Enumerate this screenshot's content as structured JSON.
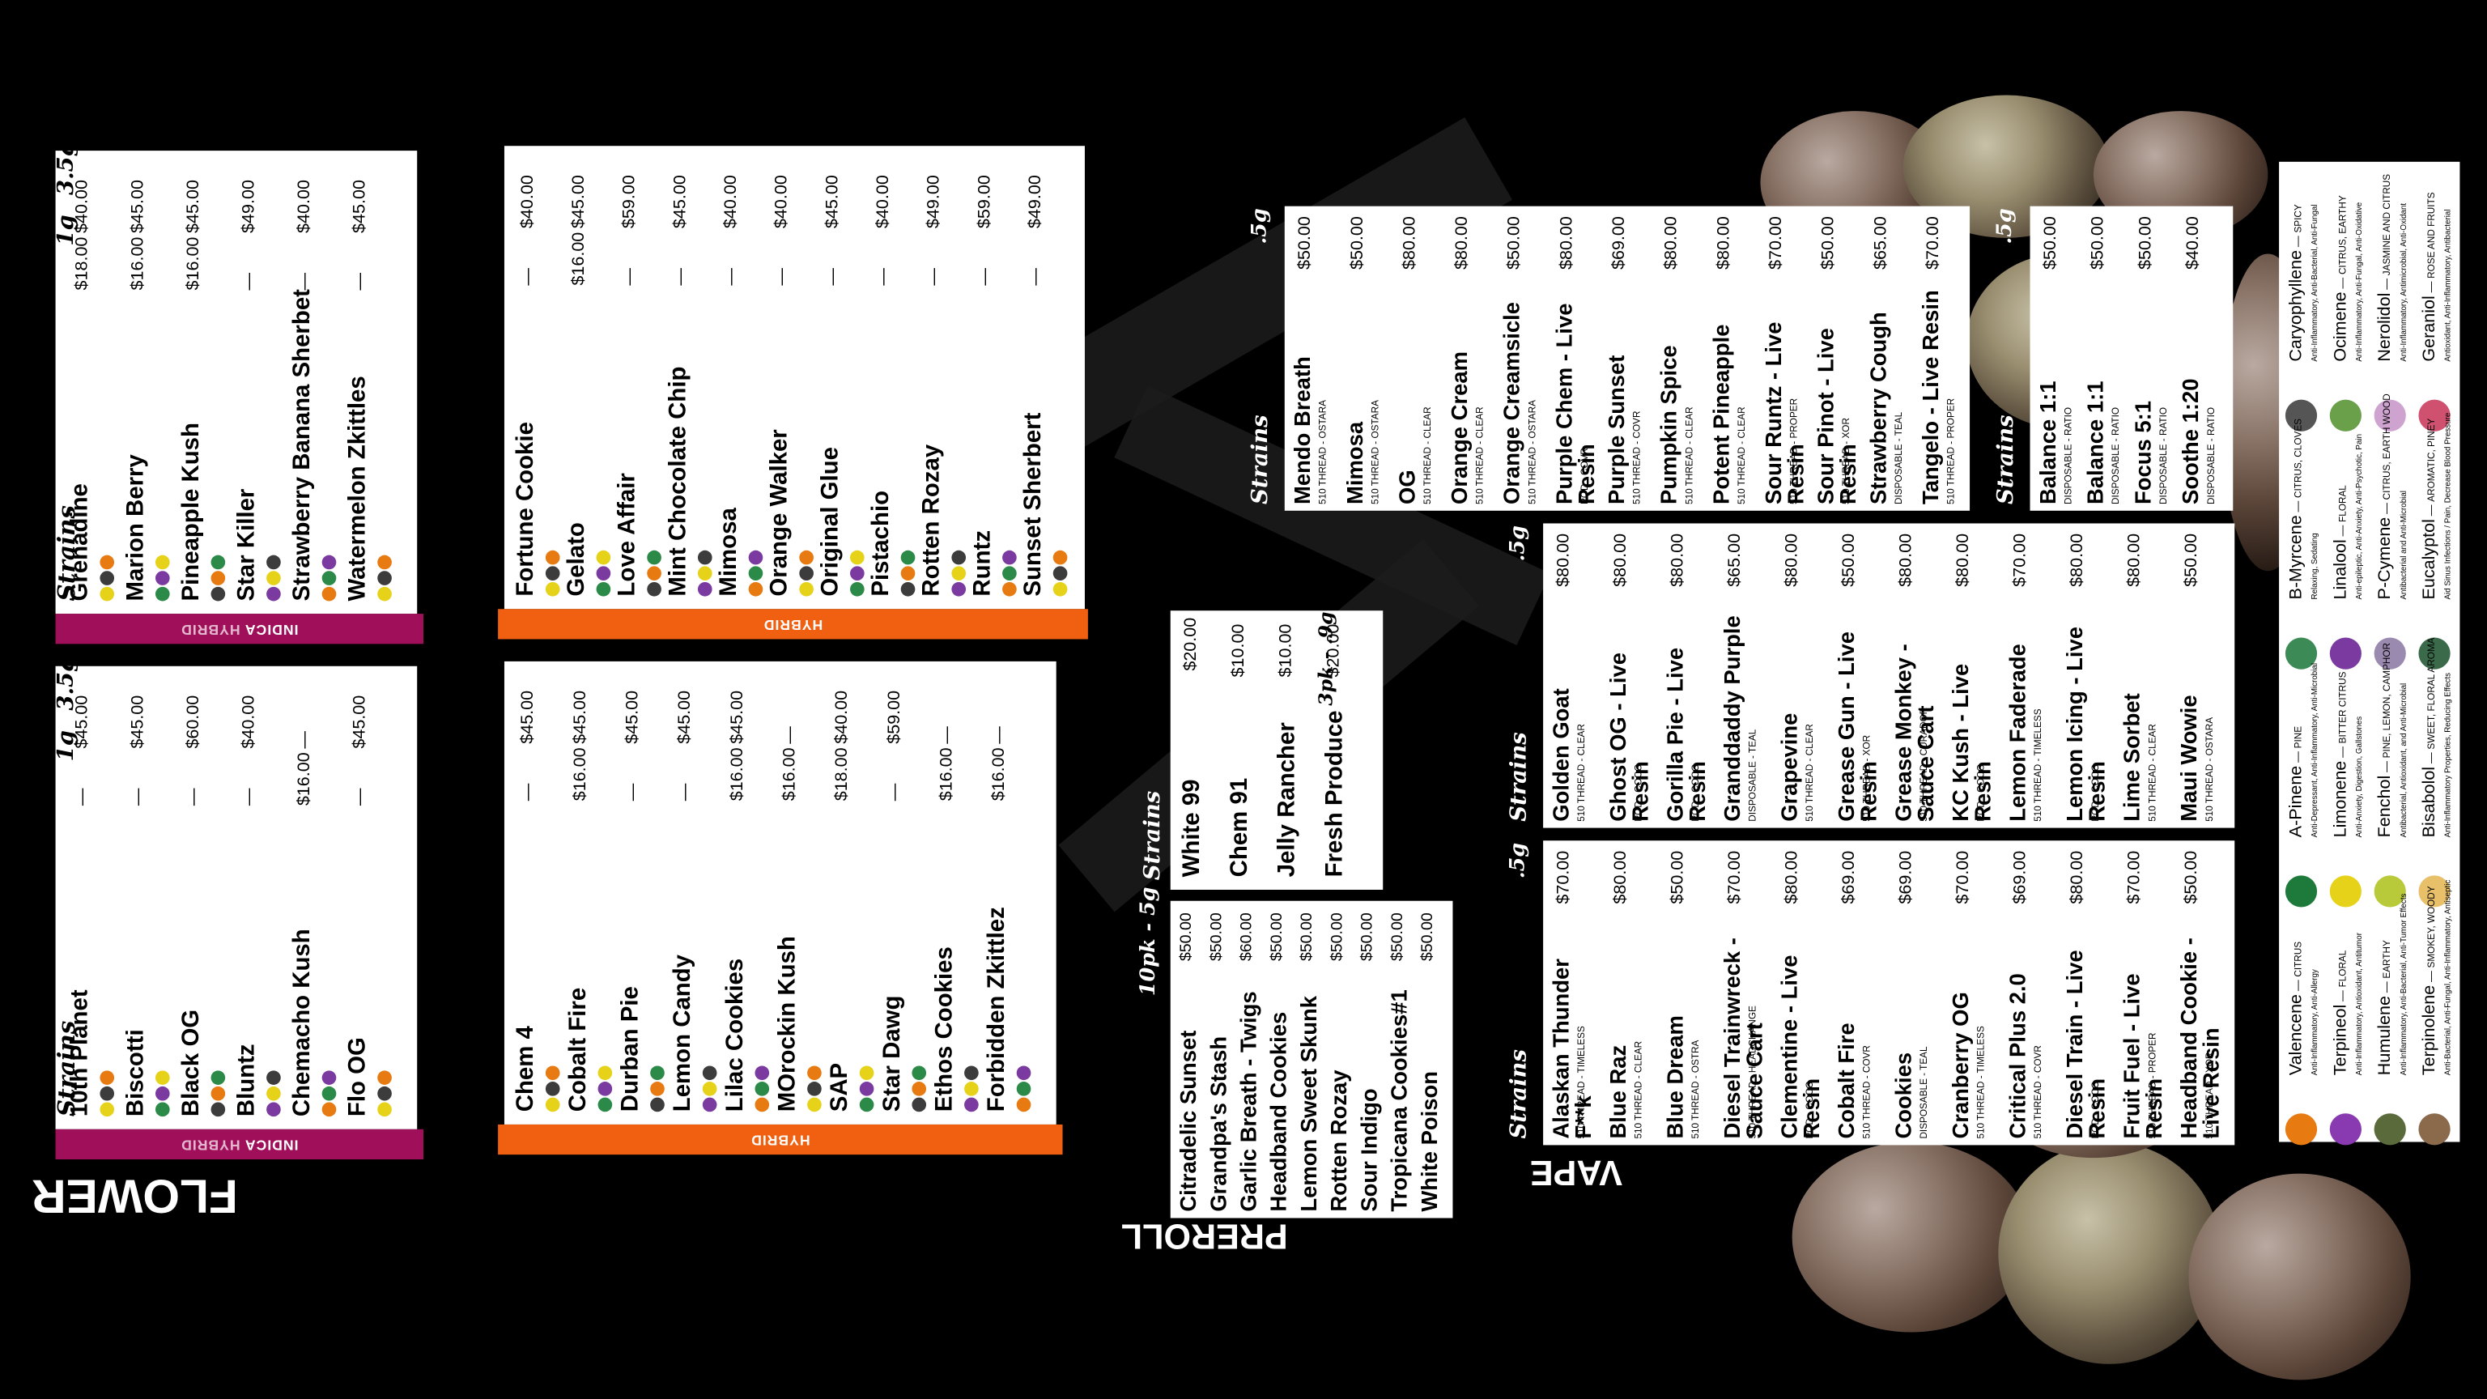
{
  "sections": {
    "flower": "FLOWER",
    "preroll": "PREROLL",
    "vape": "VAPE"
  },
  "headers": {
    "strains": "Strains",
    "g1": "1g",
    "g35": "3.5g",
    "g5": ".5g",
    "pack10": "10pk - 5g",
    "pack3": "3pk - .9g"
  },
  "bands": {
    "indica": "INDICA",
    "hybrid": "HYBRID"
  },
  "flower_indica_hybrid_top": [
    {
      "name": "Grenadine",
      "p1": "$18.00",
      "p35": "$40.00"
    },
    {
      "name": "Marion Berry",
      "p1": "$16.00",
      "p35": "$45.00"
    },
    {
      "name": "Pineapple Kush",
      "p1": "$16.00",
      "p35": "$45.00"
    },
    {
      "name": "Star Killer",
      "p1": "—",
      "p35": "$49.00"
    },
    {
      "name": "Strawberry Banana Sherbet",
      "p1": "—",
      "p35": "$40.00"
    },
    {
      "name": "Watermelon Zkittles",
      "p1": "—",
      "p35": "$45.00"
    }
  ],
  "flower_indica_hybrid_bottom": [
    {
      "name": "10th Planet",
      "p1": "—",
      "p35": "$45.00"
    },
    {
      "name": "Biscotti",
      "p1": "—",
      "p35": "$45.00"
    },
    {
      "name": "Black OG",
      "p1": "—",
      "p35": "$60.00"
    },
    {
      "name": "Bluntz",
      "p1": "—",
      "p35": "$40.00"
    },
    {
      "name": "Chemacho Kush",
      "p1": "$16.00",
      "p35": "—"
    },
    {
      "name": "Flo OG",
      "p1": "—",
      "p35": "$45.00"
    }
  ],
  "flower_hybrid_top": [
    {
      "name": "Fortune Cookie",
      "p1": "—",
      "p35": "$40.00"
    },
    {
      "name": "Gelato",
      "p1": "$16.00",
      "p35": "$45.00"
    },
    {
      "name": "Love Affair",
      "p1": "—",
      "p35": "$59.00"
    },
    {
      "name": "Mint Chocolate Chip",
      "p1": "—",
      "p35": "$45.00"
    },
    {
      "name": "Mimosa",
      "p1": "—",
      "p35": "$40.00"
    },
    {
      "name": "Orange Walker",
      "p1": "—",
      "p35": "$40.00"
    },
    {
      "name": "Original Glue",
      "p1": "—",
      "p35": "$45.00"
    },
    {
      "name": "Pistachio",
      "p1": "—",
      "p35": "$40.00"
    },
    {
      "name": "Rotten Rozay",
      "p1": "—",
      "p35": "$49.00"
    },
    {
      "name": "Runtz",
      "p1": "—",
      "p35": "$59.00"
    },
    {
      "name": "Sunset Sherbert",
      "p1": "—",
      "p35": "$49.00"
    }
  ],
  "flower_hybrid_bottom": [
    {
      "name": "Chem 4",
      "p1": "—",
      "p35": "$45.00"
    },
    {
      "name": "Cobalt Fire",
      "p1": "$16.00",
      "p35": "$45.00"
    },
    {
      "name": "Durban Pie",
      "p1": "—",
      "p35": "$45.00"
    },
    {
      "name": "Lemon Candy",
      "p1": "—",
      "p35": "$45.00"
    },
    {
      "name": "Lilac Cookies",
      "p1": "$16.00",
      "p35": "$45.00"
    },
    {
      "name": "MOrockin Kush",
      "p1": "$16.00",
      "p35": "—"
    },
    {
      "name": "SAP",
      "p1": "$18.00",
      "p35": "$40.00"
    },
    {
      "name": "Star Dawg",
      "p1": "—",
      "p35": "$59.00"
    },
    {
      "name": "Ethos Cookies",
      "p1": "$16.00",
      "p35": "—"
    },
    {
      "name": "Forbidden Zkittlez",
      "p1": "$16.00",
      "p35": "—"
    }
  ],
  "preroll_packs": [
    {
      "name": "Citradelic Sunset",
      "price": "$50.00"
    },
    {
      "name": "Grandpa's Stash",
      "price": "$50.00"
    },
    {
      "name": "Garlic Breath - Twigs",
      "price": "$60.00"
    },
    {
      "name": "Headband Cookies",
      "price": "$50.00"
    },
    {
      "name": "Lemon Sweet Skunk",
      "price": "$50.00"
    },
    {
      "name": "Rotten Rozay",
      "price": "$50.00"
    },
    {
      "name": "Sour Indigo",
      "price": "$50.00"
    },
    {
      "name": "Tropicana Cookies#1",
      "price": "$50.00"
    },
    {
      "name": "White Poison",
      "price": "$50.00"
    }
  ],
  "preroll_singles": [
    {
      "name": "White 99",
      "p1": "$20.00",
      "p2": ""
    },
    {
      "name": "Chem 91",
      "p1": "",
      "p2": "$10.00"
    },
    {
      "name": "Jelly Rancher",
      "p1": "",
      "p2": "$10.00"
    },
    {
      "name": "Fresh Produce",
      "p1": "",
      "p2": "$20.00"
    }
  ],
  "vape_top": [
    {
      "name": "Mendo Breath",
      "sub": "510 THREAD - OSTARA",
      "price": "$50.00"
    },
    {
      "name": "Mimosa",
      "sub": "510 THREAD - OSTARA",
      "price": "$50.00"
    },
    {
      "name": "OG",
      "sub": "510 THREAD - CLEAR",
      "price": "$80.00"
    },
    {
      "name": "Orange Cream",
      "sub": "510 THREAD - CLEAR",
      "price": "$80.00"
    },
    {
      "name": "Orange Creamsicle",
      "sub": "510 THREAD - OSTARA",
      "price": "$50.00"
    },
    {
      "name": "Purple Chem - Live Resin",
      "sub": "POD - COVR",
      "price": "$80.00"
    },
    {
      "name": "Purple Sunset",
      "sub": "510 THREAD - COVR",
      "price": "$69.00"
    },
    {
      "name": "Pumpkin Spice",
      "sub": "510 THREAD - CLEAR",
      "price": "$80.00"
    },
    {
      "name": "Potent Pineapple",
      "sub": "510 THREAD - CLEAR",
      "price": "$80.00"
    },
    {
      "name": "Sour Runtz - Live Resin",
      "sub": "510 THREAD - PROPER",
      "price": "$70.00"
    },
    {
      "name": "Sour Pinot - Live Resin",
      "sub": "510 THREAD - XOR",
      "price": "$50.00"
    },
    {
      "name": "Strawberry Cough",
      "sub": "DISPOSABLE - TEAL",
      "price": "$65.00"
    },
    {
      "name": "Tangelo - Live Resin",
      "sub": "510 THREAD - PROPER",
      "price": "$70.00"
    }
  ],
  "vape_ratio": [
    {
      "name": "Balance 1:1",
      "sub": "DISPOSABLE - RATIO",
      "price": "$50.00"
    },
    {
      "name": "Balance 1:1",
      "sub": "DISPOSABLE - RATIO",
      "price": "$50.00"
    },
    {
      "name": "Focus 5:1",
      "sub": "DISPOSABLE - RATIO",
      "price": "$50.00"
    },
    {
      "name": "Soothe 1:20",
      "sub": "DISPOSABLE - RATIO",
      "price": "$40.00"
    }
  ],
  "vape_mid": [
    {
      "name": "Golden Goat",
      "sub": "510 THREAD - CLEAR",
      "price": "$80.00"
    },
    {
      "name": "Ghost OG - Live Resin",
      "sub": "POD - COCO",
      "price": "$80.00"
    },
    {
      "name": "Gorilla Pie - Live Resin",
      "sub": "POD - COCO",
      "price": "$80.00"
    },
    {
      "name": "Granddaddy Purple",
      "sub": "DISPOSABLE - TEAL",
      "price": "$65.00"
    },
    {
      "name": "Grapevine",
      "sub": "510 THREAD - CLEAR",
      "price": "$80.00"
    },
    {
      "name": "Grease Gun - Live Resin",
      "sub": "510 THREAD - XOR",
      "price": "$50.00"
    },
    {
      "name": "Grease Monkey - Sauce Cart",
      "sub": "510 THREAD - CURADOR",
      "price": "$80.00"
    },
    {
      "name": "KC Kush - Live Resin",
      "sub": "POD - COCO",
      "price": "$80.00"
    },
    {
      "name": "Lemon Faderade",
      "sub": "510 THREAD - TIMELESS",
      "price": "$70.00"
    },
    {
      "name": "Lemon Icing - Live Resin",
      "sub": "POD - COCO",
      "price": "$80.00"
    },
    {
      "name": "Lime Sorbet",
      "sub": "510 THREAD - CLEAR",
      "price": "$80.00"
    },
    {
      "name": "Maui Wowie",
      "sub": "510 THREAD - OSTARA",
      "price": "$50.00"
    }
  ],
  "vape_bottom": [
    {
      "name": "Alaskan Thunder F**k",
      "sub": "510 THREAD - TIMELESS",
      "price": "$70.00"
    },
    {
      "name": "Blue Raz",
      "sub": "510 THREAD - CLEAR",
      "price": "$80.00"
    },
    {
      "name": "Blue Dream",
      "sub": "510 THREAD - OSTRA",
      "price": "$50.00"
    },
    {
      "name": "Diesel Trainwreck - Sauce Cart",
      "sub": "510 THREAD - HEADCHANGE",
      "price": "$70.00"
    },
    {
      "name": "Clementine - Live Resin",
      "sub": "POD - COCO",
      "price": "$80.00"
    },
    {
      "name": "Cobalt Fire",
      "sub": "510 THREAD - COVR",
      "price": "$69.00"
    },
    {
      "name": "Cookies",
      "sub": "DISPOSABLE - TEAL",
      "price": "$69.00"
    },
    {
      "name": "Cranberry OG",
      "sub": "510 THREAD - TIMELESS",
      "price": "$70.00"
    },
    {
      "name": "Critical Plus 2.0",
      "sub": "510 THREAD - COVR",
      "price": "$69.00"
    },
    {
      "name": "Diesel Train - Live Resin",
      "sub": "POD - COCO",
      "price": "$80.00"
    },
    {
      "name": "Fruit Fuel - Live Resin",
      "sub": "510 THREAD - PROPER",
      "price": "$70.00"
    },
    {
      "name": "Headband Cookie - Live Resin",
      "sub": "510 THREAD - XOR",
      "price": "$50.00"
    }
  ],
  "terpenes": [
    [
      {
        "name": "Caryophyllene",
        "note": "SPICY",
        "desc": "Anti-Inflammatory, Anti-Bacterial, Anti-Fungal",
        "color": "#555555"
      },
      {
        "name": "B-Myrcene",
        "note": "CITRUS, CLOVES",
        "desc": "Relaxing, Sedating",
        "color": "#3c8a55"
      },
      {
        "name": "A-Pinene",
        "note": "PINE",
        "desc": "Anti-Depressant, Anti-Inflammatory, Anti-Microbial",
        "color": "#1e7a3a"
      },
      {
        "name": "Valencene",
        "note": "CITRUS",
        "desc": "Anti-Inflammatory, Anti-Allergy",
        "color": "#e77a10"
      }
    ],
    [
      {
        "name": "Ocimene",
        "note": "CITRUS, EARTHY",
        "desc": "Anti-Inflammatory, Anti-Fungal, Anti-Oxidative",
        "color": "#6aa04a"
      },
      {
        "name": "Linalool",
        "note": "FLORAL",
        "desc": "Anti-epileptic, Anti-Anxiety, Anti-Psychotic, Pain",
        "color": "#7a3aa0"
      },
      {
        "name": "Limonene",
        "note": "BITTER CITRUS",
        "desc": "Anti-Anxiety, Digestion, Gallstones",
        "color": "#e7d21a"
      },
      {
        "name": "Terpineol",
        "note": "FLORAL",
        "desc": "Anti-Inflammatory, Antioxidant, Antitumor",
        "color": "#8a3ab0"
      }
    ],
    [
      {
        "name": "Nerolidol",
        "note": "JASMINE AND CITRUS",
        "desc": "Anti-Inflammatory, Antimicrobial, Anti-Oxidant",
        "color": "#cfa3d0"
      },
      {
        "name": "P-Cymene",
        "note": "CITRUS, EARTH WOOD",
        "desc": "Antibacterial and Anti-Microbial",
        "color": "#9a8ab0"
      },
      {
        "name": "Fenchol",
        "note": "PINE, LEMON, CAMPHOR",
        "desc": "Antibacterial, Antioxidant, and Anti-Microbial",
        "color": "#b8c93a"
      },
      {
        "name": "Humulene",
        "note": "EARTHY",
        "desc": "Anti-Inflammatory, Anti-Bacterial, Anti-Tumor Effects",
        "color": "#5a6a3a"
      }
    ],
    [
      {
        "name": "Geraniol",
        "note": "ROSE AND FRUITS",
        "desc": "Antioxidant, Anti-Inflammatory, Antibacterial",
        "color": "#d05070"
      },
      {
        "name": "Eucalyptol",
        "note": "AROMATIC, PINEY",
        "desc": "Aid Sinus Infections / Pain, Decrease Blood Pressure",
        "color": "#3a6a4a"
      },
      {
        "name": "Bisabolol",
        "note": "SWEET, FLORAL AROMA",
        "desc": "Anti-Inflammatory Properties, Reducing Effects",
        "color": "#e8c06a"
      },
      {
        "name": "Terpinolene",
        "note": "SMOKEY, WOODY",
        "desc": "Anti-Bacterial, Anti-Fungal, Anti-Inflammatory, Antiseptic",
        "color": "#8a6a4a"
      }
    ]
  ]
}
